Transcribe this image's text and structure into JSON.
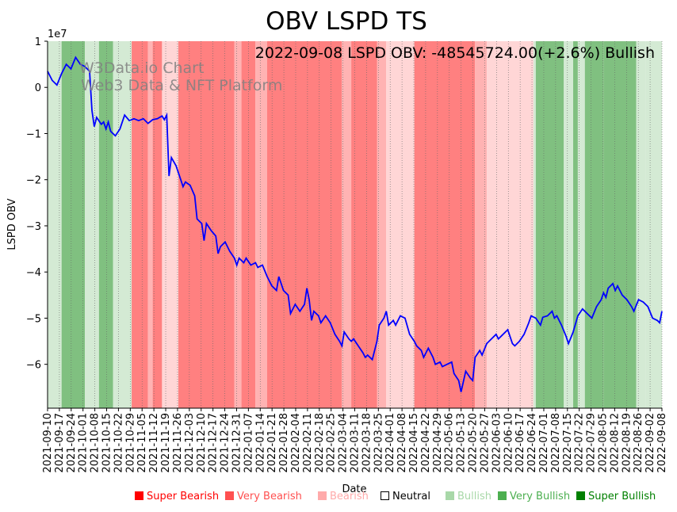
{
  "chart_data": {
    "type": "line",
    "title": "OBV LSPD TS",
    "annotation": "2022-09-08 LSPD OBV: -48545724.00(+2.6%) Bullish",
    "watermark_line1": "W3Data.io Chart",
    "watermark_line2": "Web3 Data & NFT Platform",
    "xlabel": "Date",
    "ylabel": "LSPD OBV",
    "y_scale_label": "1e7",
    "ylim": [
      -6.95,
      1.0
    ],
    "y_ticks": [
      1,
      0,
      -1,
      -2,
      -3,
      -4,
      -5,
      -6
    ],
    "y_tick_labels": [
      "1",
      "0",
      "−1",
      "−2",
      "−3",
      "−4",
      "−5",
      "−6"
    ],
    "x_ticks": [
      "2021-09-10",
      "2021-09-17",
      "2021-09-24",
      "2021-10-01",
      "2021-10-08",
      "2021-10-15",
      "2021-10-22",
      "2021-10-29",
      "2021-11-05",
      "2021-11-12",
      "2021-11-19",
      "2021-11-26",
      "2021-12-03",
      "2021-12-10",
      "2021-12-17",
      "2021-12-24",
      "2021-12-31",
      "2022-01-07",
      "2022-01-14",
      "2022-01-21",
      "2022-01-28",
      "2022-02-04",
      "2022-02-11",
      "2022-02-18",
      "2022-02-25",
      "2022-03-04",
      "2022-03-11",
      "2022-03-18",
      "2022-03-25",
      "2022-04-01",
      "2022-04-08",
      "2022-04-15",
      "2022-04-22",
      "2022-04-29",
      "2022-05-06",
      "2022-05-13",
      "2022-05-20",
      "2022-05-27",
      "2022-06-03",
      "2022-06-10",
      "2022-06-17",
      "2022-06-24",
      "2022-07-01",
      "2022-07-08",
      "2022-07-15",
      "2022-07-22",
      "2022-07-29",
      "2022-08-05",
      "2022-08-12",
      "2022-08-19",
      "2022-08-26",
      "2022-09-02",
      "2022-09-08"
    ],
    "series": [
      {
        "name": "LSPD OBV (x1e7)",
        "color": "#0000ff",
        "points": [
          [
            0,
            0.35
          ],
          [
            2,
            0.15
          ],
          [
            4,
            0.05
          ],
          [
            6,
            0.3
          ],
          [
            8,
            0.5
          ],
          [
            10,
            0.4
          ],
          [
            12,
            0.65
          ],
          [
            14,
            0.5
          ],
          [
            16,
            0.45
          ],
          [
            18,
            0.35
          ],
          [
            19,
            -0.5
          ],
          [
            20,
            -0.85
          ],
          [
            21,
            -0.65
          ],
          [
            23,
            -0.8
          ],
          [
            24,
            -0.75
          ],
          [
            25,
            -0.9
          ],
          [
            26,
            -0.75
          ],
          [
            27,
            -0.95
          ],
          [
            29,
            -1.05
          ],
          [
            31,
            -0.9
          ],
          [
            33,
            -0.6
          ],
          [
            35,
            -0.72
          ],
          [
            37,
            -0.68
          ],
          [
            39,
            -0.72
          ],
          [
            41,
            -0.68
          ],
          [
            43,
            -0.78
          ],
          [
            45,
            -0.7
          ],
          [
            47,
            -0.68
          ],
          [
            49,
            -0.62
          ],
          [
            50,
            -0.7
          ],
          [
            51,
            -0.6
          ],
          [
            52,
            -1.92
          ],
          [
            53,
            -1.52
          ],
          [
            55,
            -1.7
          ],
          [
            57,
            -2.0
          ],
          [
            58,
            -2.15
          ],
          [
            59,
            -2.05
          ],
          [
            61,
            -2.12
          ],
          [
            63,
            -2.35
          ],
          [
            64,
            -2.85
          ],
          [
            65,
            -2.9
          ],
          [
            66,
            -2.95
          ],
          [
            67,
            -3.32
          ],
          [
            68,
            -2.95
          ],
          [
            70,
            -3.1
          ],
          [
            72,
            -3.22
          ],
          [
            73,
            -3.6
          ],
          [
            74,
            -3.45
          ],
          [
            76,
            -3.35
          ],
          [
            78,
            -3.55
          ],
          [
            80,
            -3.7
          ],
          [
            81,
            -3.85
          ],
          [
            82,
            -3.7
          ],
          [
            84,
            -3.8
          ],
          [
            85,
            -3.7
          ],
          [
            87,
            -3.85
          ],
          [
            89,
            -3.8
          ],
          [
            90,
            -3.9
          ],
          [
            92,
            -3.85
          ],
          [
            94,
            -4.1
          ],
          [
            96,
            -4.3
          ],
          [
            98,
            -4.4
          ],
          [
            99,
            -4.1
          ],
          [
            101,
            -4.4
          ],
          [
            103,
            -4.5
          ],
          [
            104,
            -4.9
          ],
          [
            106,
            -4.7
          ],
          [
            108,
            -4.85
          ],
          [
            110,
            -4.7
          ],
          [
            111,
            -4.35
          ],
          [
            112,
            -4.6
          ],
          [
            113,
            -5.05
          ],
          [
            114,
            -4.85
          ],
          [
            116,
            -4.95
          ],
          [
            117,
            -5.1
          ],
          [
            119,
            -4.95
          ],
          [
            121,
            -5.1
          ],
          [
            123,
            -5.35
          ],
          [
            125,
            -5.5
          ],
          [
            126,
            -5.6
          ],
          [
            127,
            -5.3
          ],
          [
            129,
            -5.45
          ],
          [
            130,
            -5.5
          ],
          [
            131,
            -5.45
          ],
          [
            133,
            -5.6
          ],
          [
            135,
            -5.75
          ],
          [
            136,
            -5.85
          ],
          [
            137,
            -5.8
          ],
          [
            139,
            -5.9
          ],
          [
            141,
            -5.5
          ],
          [
            142,
            -5.15
          ],
          [
            144,
            -5.0
          ],
          [
            145,
            -4.85
          ],
          [
            146,
            -5.15
          ],
          [
            148,
            -5.05
          ],
          [
            149,
            -5.15
          ],
          [
            151,
            -4.95
          ],
          [
            153,
            -5.0
          ],
          [
            155,
            -5.35
          ],
          [
            157,
            -5.5
          ],
          [
            158,
            -5.6
          ],
          [
            160,
            -5.7
          ],
          [
            161,
            -5.85
          ],
          [
            163,
            -5.65
          ],
          [
            165,
            -5.85
          ],
          [
            166,
            -6.0
          ],
          [
            168,
            -5.95
          ],
          [
            169,
            -6.05
          ],
          [
            171,
            -6.0
          ],
          [
            173,
            -5.95
          ],
          [
            174,
            -6.2
          ],
          [
            176,
            -6.35
          ],
          [
            177,
            -6.6
          ],
          [
            179,
            -6.15
          ],
          [
            181,
            -6.3
          ],
          [
            182,
            -6.35
          ],
          [
            183,
            -5.85
          ],
          [
            185,
            -5.7
          ],
          [
            186,
            -5.8
          ],
          [
            188,
            -5.55
          ],
          [
            190,
            -5.45
          ],
          [
            192,
            -5.35
          ],
          [
            193,
            -5.45
          ],
          [
            195,
            -5.35
          ],
          [
            197,
            -5.25
          ],
          [
            199,
            -5.55
          ],
          [
            200,
            -5.6
          ],
          [
            202,
            -5.5
          ],
          [
            204,
            -5.35
          ],
          [
            206,
            -5.1
          ],
          [
            207,
            -4.95
          ],
          [
            209,
            -5.0
          ],
          [
            211,
            -5.15
          ],
          [
            212,
            -4.98
          ],
          [
            214,
            -4.95
          ],
          [
            216,
            -4.85
          ],
          [
            217,
            -5.0
          ],
          [
            218,
            -4.95
          ],
          [
            220,
            -5.15
          ],
          [
            222,
            -5.4
          ],
          [
            223,
            -5.55
          ],
          [
            225,
            -5.3
          ],
          [
            227,
            -4.95
          ],
          [
            229,
            -4.8
          ],
          [
            231,
            -4.9
          ],
          [
            233,
            -5.0
          ],
          [
            235,
            -4.75
          ],
          [
            237,
            -4.6
          ],
          [
            238,
            -4.45
          ],
          [
            239,
            -4.55
          ],
          [
            240,
            -4.35
          ],
          [
            242,
            -4.25
          ],
          [
            243,
            -4.4
          ],
          [
            244,
            -4.3
          ],
          [
            246,
            -4.5
          ],
          [
            248,
            -4.6
          ],
          [
            250,
            -4.75
          ],
          [
            251,
            -4.85
          ],
          [
            253,
            -4.6
          ],
          [
            255,
            -4.65
          ],
          [
            257,
            -4.75
          ],
          [
            259,
            -5.0
          ],
          [
            261,
            -5.05
          ],
          [
            262,
            -5.1
          ],
          [
            263,
            -4.85
          ]
        ]
      }
    ],
    "x_max_index": 263,
    "sentiment_bands": [
      {
        "from": 0,
        "to": 6,
        "level": "Bullish"
      },
      {
        "from": 6,
        "to": 16,
        "level": "Very Bullish"
      },
      {
        "from": 16,
        "to": 22,
        "level": "Bullish"
      },
      {
        "from": 22,
        "to": 28,
        "level": "Very Bullish"
      },
      {
        "from": 28,
        "to": 29,
        "level": "Bullish"
      },
      {
        "from": 29,
        "to": 36,
        "level": "Bullish"
      },
      {
        "from": 36,
        "to": 43,
        "level": "Very Bearish"
      },
      {
        "from": 43,
        "to": 45,
        "level": "Bearish"
      },
      {
        "from": 45,
        "to": 49,
        "level": "Very Bearish"
      },
      {
        "from": 49,
        "to": 56,
        "level": "Neutral-Bearish"
      },
      {
        "from": 56,
        "to": 80,
        "level": "Very Bearish"
      },
      {
        "from": 80,
        "to": 83,
        "level": "Bearish"
      },
      {
        "from": 83,
        "to": 89,
        "level": "Very Bearish"
      },
      {
        "from": 89,
        "to": 94,
        "level": "Bearish"
      },
      {
        "from": 94,
        "to": 126,
        "level": "Very Bearish"
      },
      {
        "from": 126,
        "to": 130,
        "level": "Bearish"
      },
      {
        "from": 130,
        "to": 141,
        "level": "Very Bearish"
      },
      {
        "from": 141,
        "to": 145,
        "level": "Bearish"
      },
      {
        "from": 145,
        "to": 157,
        "level": "Neutral-Bearish"
      },
      {
        "from": 157,
        "to": 183,
        "level": "Very Bearish"
      },
      {
        "from": 183,
        "to": 188,
        "level": "Bearish"
      },
      {
        "from": 188,
        "to": 208,
        "level": "Neutral-Bearish"
      },
      {
        "from": 208,
        "to": 209,
        "level": "Bullish"
      },
      {
        "from": 209,
        "to": 221,
        "level": "Very Bullish"
      },
      {
        "from": 221,
        "to": 225,
        "level": "Bullish"
      },
      {
        "from": 225,
        "to": 227,
        "level": "Very Bullish"
      },
      {
        "from": 227,
        "to": 230,
        "level": "Bullish"
      },
      {
        "from": 230,
        "to": 238,
        "level": "Very Bullish"
      },
      {
        "from": 238,
        "to": 252,
        "level": "Very Bullish"
      },
      {
        "from": 252,
        "to": 256,
        "level": "Bullish"
      },
      {
        "from": 256,
        "to": 263,
        "level": "Bullish"
      }
    ],
    "band_colors": {
      "Very Bearish": "#ff8080",
      "Bearish": "#ffb3b3",
      "Neutral-Bearish": "#ffd6d6",
      "Bullish": "#d4ead4",
      "Very Bullish": "#80c080"
    },
    "legend": [
      {
        "label": "Super Bearish",
        "color": "#ff0000",
        "text_color": "#ff0000"
      },
      {
        "label": "Very Bearish",
        "color": "#ff5050",
        "text_color": "#ff5050"
      },
      {
        "label": "Bearish",
        "color": "#ffaaaa",
        "text_color": "#ffaaaa"
      },
      {
        "label": "Neutral",
        "color": "#ffffff",
        "text_color": "#000000"
      },
      {
        "label": "Bullish",
        "color": "#a8d8a8",
        "text_color": "#a8d8a8"
      },
      {
        "label": "Very Bullish",
        "color": "#4caf50",
        "text_color": "#4caf50"
      },
      {
        "label": "Super Bullish",
        "color": "#008000",
        "text_color": "#008000"
      }
    ],
    "legend_placement": "bottom"
  }
}
